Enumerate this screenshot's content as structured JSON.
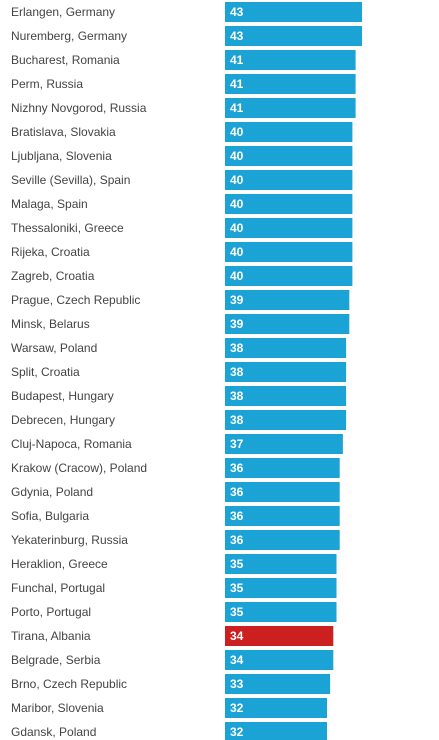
{
  "chart_data": {
    "type": "bar",
    "orientation": "horizontal",
    "categories": [
      "Erlangen, Germany",
      "Nuremberg, Germany",
      "Bucharest, Romania",
      "Perm, Russia",
      "Nizhny Novgorod, Russia",
      "Bratislava, Slovakia",
      "Ljubljana, Slovenia",
      "Seville (Sevilla), Spain",
      "Malaga, Spain",
      "Thessaloniki, Greece",
      "Rijeka, Croatia",
      "Zagreb, Croatia",
      "Prague, Czech Republic",
      "Minsk, Belarus",
      "Warsaw, Poland",
      "Split, Croatia",
      "Budapest, Hungary",
      "Debrecen, Hungary",
      "Cluj-Napoca, Romania",
      "Krakow (Cracow), Poland",
      "Gdynia, Poland",
      "Sofia, Bulgaria",
      "Yekaterinburg, Russia",
      "Heraklion, Greece",
      "Funchal, Portugal",
      "Porto, Portugal",
      "Tirana, Albania",
      "Belgrade, Serbia",
      "Brno, Czech Republic",
      "Maribor, Slovenia",
      "Gdansk, Poland"
    ],
    "values": [
      43,
      43,
      41,
      41,
      41,
      40,
      40,
      40,
      40,
      40,
      40,
      40,
      39,
      39,
      38,
      38,
      38,
      38,
      37,
      36,
      36,
      36,
      36,
      35,
      35,
      35,
      34,
      34,
      33,
      32,
      32
    ],
    "highlight": "Tirana, Albania",
    "colors": {
      "bar": "#1ba3d6",
      "highlight": "#cc1f1f"
    },
    "data_labels": true,
    "grid": false,
    "legend": "none",
    "xlim": [
      0,
      43
    ]
  }
}
